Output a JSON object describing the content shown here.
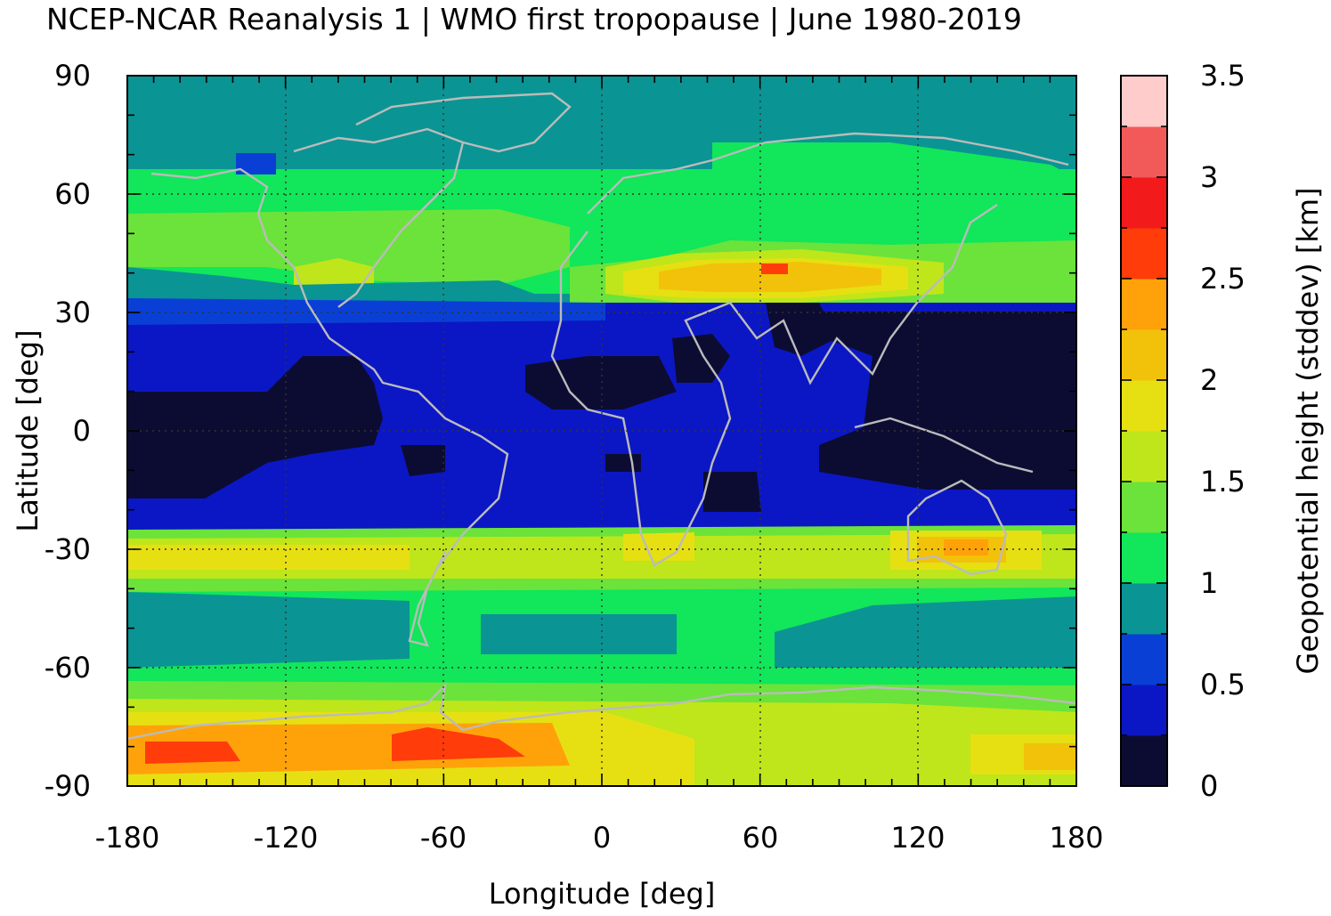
{
  "title": "NCEP-NCAR Reanalysis 1 | WMO first tropopause | June 1980-2019",
  "map": {
    "projection": "equirectangular",
    "lon_range": [
      -180,
      180
    ],
    "lat_range": [
      -90,
      90
    ],
    "xlabel": "Longitude [deg]",
    "ylabel": "Latitude [deg]",
    "x_ticks": [
      "-180",
      "-120",
      "-60",
      "0",
      "60",
      "120",
      "180"
    ],
    "y_ticks": [
      "90",
      "60",
      "30",
      "0",
      "-30",
      "-60",
      "-90"
    ],
    "grid": "dotted",
    "coastline_color": "#bbbbbb"
  },
  "colorbar": {
    "label": "Geopotential height (stddev) [km]",
    "ticks": [
      "0",
      "0.5",
      "1",
      "1.5",
      "2",
      "2.5",
      "3",
      "3.5"
    ],
    "range": [
      0,
      3.5
    ],
    "step": 0.25,
    "colors": [
      "#0c0c33",
      "#0b17c4",
      "#0a3fd6",
      "#0b9494",
      "#12e65a",
      "#6be33b",
      "#bfe61a",
      "#e6e012",
      "#f2c20a",
      "#ffa20a",
      "#ff3c0a",
      "#f21a1a",
      "#f25a5a",
      "#ffcccc"
    ]
  },
  "legend_icons": {
    "coastlines": "coastline-outline"
  }
}
